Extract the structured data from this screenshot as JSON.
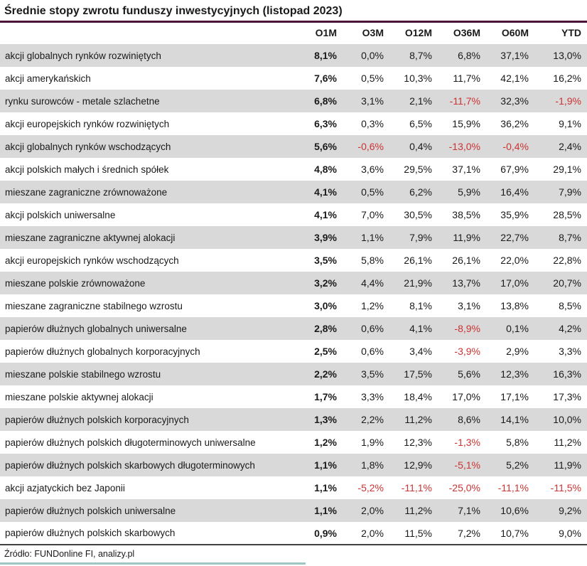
{
  "title": "Średnie stopy zwrotu funduszy inwestycyjnych (listopad 2023)",
  "source": "Źródło: FUNDonline FI, analizy.pl",
  "colors": {
    "accent_rule": "#4a1337",
    "row_alternate": "#d9d9d9",
    "negative_value": "#cc3333",
    "table_bottom_rule": "#404040",
    "brand_bar": "#9ec7c4"
  },
  "chart_data": {
    "type": "table",
    "title": "Średnie stopy zwrotu funduszy inwestycyjnych (listopad 2023)",
    "columns": [
      "O1M",
      "O3M",
      "O12M",
      "O36M",
      "O60M",
      "YTD"
    ],
    "rows": [
      {
        "name": "akcji globalnych rynków rozwiniętych",
        "values": [
          "8,1%",
          "0,0%",
          "8,7%",
          "6,8%",
          "37,1%",
          "13,0%"
        ]
      },
      {
        "name": "akcji amerykańskich",
        "values": [
          "7,6%",
          "0,5%",
          "10,3%",
          "11,7%",
          "42,1%",
          "16,2%"
        ]
      },
      {
        "name": "rynku surowców - metale szlachetne",
        "values": [
          "6,8%",
          "3,1%",
          "2,1%",
          "-11,7%",
          "32,3%",
          "-1,9%"
        ]
      },
      {
        "name": "akcji europejskich rynków rozwiniętych",
        "values": [
          "6,3%",
          "0,3%",
          "6,5%",
          "15,9%",
          "36,2%",
          "9,1%"
        ]
      },
      {
        "name": "akcji globalnych rynków wschodzących",
        "values": [
          "5,6%",
          "-0,6%",
          "0,4%",
          "-13,0%",
          "-0,4%",
          "2,4%"
        ]
      },
      {
        "name": "akcji polskich małych i średnich spółek",
        "values": [
          "4,8%",
          "3,6%",
          "29,5%",
          "37,1%",
          "67,9%",
          "29,1%"
        ]
      },
      {
        "name": "mieszane zagraniczne zrównoważone",
        "values": [
          "4,1%",
          "0,5%",
          "6,2%",
          "5,9%",
          "16,4%",
          "7,9%"
        ]
      },
      {
        "name": "akcji polskich uniwersalne",
        "values": [
          "4,1%",
          "7,0%",
          "30,5%",
          "38,5%",
          "35,9%",
          "28,5%"
        ]
      },
      {
        "name": "mieszane zagraniczne aktywnej alokacji",
        "values": [
          "3,9%",
          "1,1%",
          "7,9%",
          "11,9%",
          "22,7%",
          "8,7%"
        ]
      },
      {
        "name": "akcji europejskich rynków wschodzących",
        "values": [
          "3,5%",
          "5,8%",
          "26,1%",
          "26,1%",
          "22,0%",
          "22,8%"
        ]
      },
      {
        "name": "mieszane polskie zrównoważone",
        "values": [
          "3,2%",
          "4,4%",
          "21,9%",
          "13,7%",
          "17,0%",
          "20,7%"
        ]
      },
      {
        "name": "mieszane zagraniczne stabilnego wzrostu",
        "values": [
          "3,0%",
          "1,2%",
          "8,1%",
          "3,1%",
          "13,8%",
          "8,5%"
        ]
      },
      {
        "name": "papierów dłużnych globalnych uniwersalne",
        "values": [
          "2,8%",
          "0,6%",
          "4,1%",
          "-8,9%",
          "0,1%",
          "4,2%"
        ]
      },
      {
        "name": "papierów dłużnych globalnych korporacyjnych",
        "values": [
          "2,5%",
          "0,6%",
          "3,4%",
          "-3,9%",
          "2,9%",
          "3,3%"
        ]
      },
      {
        "name": "mieszane polskie stabilnego wzrostu",
        "values": [
          "2,2%",
          "3,5%",
          "17,5%",
          "5,6%",
          "12,3%",
          "16,3%"
        ]
      },
      {
        "name": "mieszane polskie aktywnej alokacji",
        "values": [
          "1,7%",
          "3,3%",
          "18,4%",
          "17,0%",
          "17,1%",
          "17,3%"
        ]
      },
      {
        "name": "papierów dłużnych polskich korporacyjnych",
        "values": [
          "1,3%",
          "2,2%",
          "11,2%",
          "8,6%",
          "14,1%",
          "10,0%"
        ]
      },
      {
        "name": "papierów dłużnych polskich długoterminowych uniwersalne",
        "values": [
          "1,2%",
          "1,9%",
          "12,3%",
          "-1,3%",
          "5,8%",
          "11,2%"
        ]
      },
      {
        "name": "papierów dłużnych polskich skarbowych długoterminowych",
        "values": [
          "1,1%",
          "1,8%",
          "12,9%",
          "-5,1%",
          "5,2%",
          "11,9%"
        ]
      },
      {
        "name": "akcji azjatyckich bez Japonii",
        "values": [
          "1,1%",
          "-5,2%",
          "-11,1%",
          "-25,0%",
          "-11,1%",
          "-11,5%"
        ]
      },
      {
        "name": "papierów dłużnych polskich uniwersalne",
        "values": [
          "1,1%",
          "2,0%",
          "11,2%",
          "7,1%",
          "10,6%",
          "9,2%"
        ]
      },
      {
        "name": "papierów dłużnych polskich skarbowych",
        "values": [
          "0,9%",
          "2,0%",
          "11,5%",
          "7,2%",
          "10,7%",
          "9,0%"
        ]
      }
    ]
  }
}
